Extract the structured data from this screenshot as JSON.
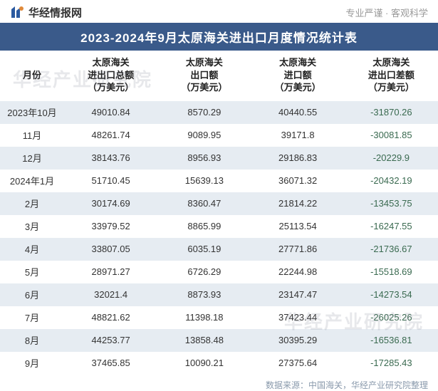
{
  "header": {
    "brand": "华经情报网",
    "tagline": "专业严谨 · 客观科学",
    "logo_colors": {
      "blue": "#2b5aa0",
      "orange": "#e08a3a"
    }
  },
  "title": "2023-2024年9月太原海关进出口月度情况统计表",
  "columns": [
    "月份",
    "太原海关\n进出口总额\n（万美元）",
    "太原海关\n出口额\n（万美元）",
    "太原海关\n进口额\n（万美元）",
    "太原海关\n进出口差额\n（万美元）"
  ],
  "rows": [
    {
      "month": "2023年10月",
      "total": "49010.84",
      "export": "8570.29",
      "import": "40440.55",
      "diff": "-31870.26"
    },
    {
      "month": "11月",
      "total": "48261.74",
      "export": "9089.95",
      "import": "39171.8",
      "diff": "-30081.85"
    },
    {
      "month": "12月",
      "total": "38143.76",
      "export": "8956.93",
      "import": "29186.83",
      "diff": "-20229.9"
    },
    {
      "month": "2024年1月",
      "total": "51710.45",
      "export": "15639.13",
      "import": "36071.32",
      "diff": "-20432.19"
    },
    {
      "month": "2月",
      "total": "30174.69",
      "export": "8360.47",
      "import": "21814.22",
      "diff": "-13453.75"
    },
    {
      "month": "3月",
      "total": "33979.52",
      "export": "8865.99",
      "import": "25113.54",
      "diff": "-16247.55"
    },
    {
      "month": "4月",
      "total": "33807.05",
      "export": "6035.19",
      "import": "27771.86",
      "diff": "-21736.67"
    },
    {
      "month": "5月",
      "total": "28971.27",
      "export": "6726.29",
      "import": "22244.98",
      "diff": "-15518.69"
    },
    {
      "month": "6月",
      "total": "32021.4",
      "export": "8873.93",
      "import": "23147.47",
      "diff": "-14273.54"
    },
    {
      "month": "7月",
      "total": "48821.62",
      "export": "11398.18",
      "import": "37423.44",
      "diff": "-26025.26"
    },
    {
      "month": "8月",
      "total": "44253.77",
      "export": "13858.48",
      "import": "30395.29",
      "diff": "-16536.81"
    },
    {
      "month": "9月",
      "total": "37465.85",
      "export": "10090.21",
      "import": "27375.64",
      "diff": "-17285.43"
    }
  ],
  "footer": "数据来源：中国海关，华经产业研究院整理",
  "watermark": "华经产业研究院",
  "styling": {
    "title_bg": "#3a5a8a",
    "title_color": "#ffffff",
    "alt_row_bg": "#e6ecf2",
    "diff_color": "#3a6a50",
    "text_color": "#333333",
    "footer_color": "#8a9aac",
    "tagline_color": "#999999",
    "header_font_size": 13,
    "cell_font_size": 13,
    "title_font_size": 17
  }
}
